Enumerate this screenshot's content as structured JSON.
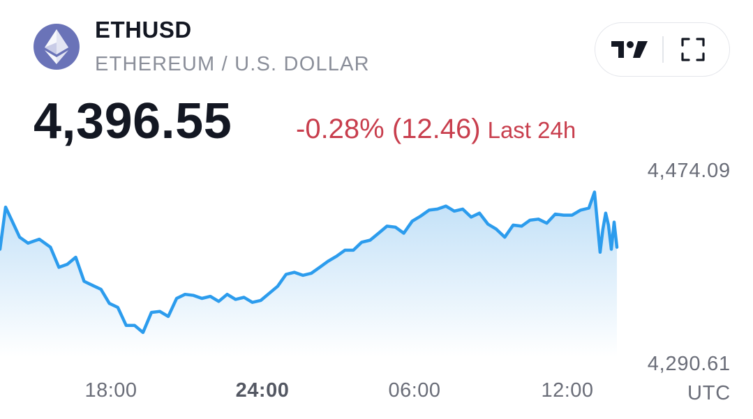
{
  "header": {
    "symbol": "ETHUSD",
    "description": "ETHEREUM / U.S. DOLLAR",
    "logo_icon": "ethereum-icon"
  },
  "toolbar": {
    "tradingview_icon": "tradingview-logo-icon",
    "fullscreen_icon": "fullscreen-icon"
  },
  "quote": {
    "price": "4,396.55",
    "change": "-0.28% (12.46)",
    "period": "Last 24h"
  },
  "colors": {
    "line": "#2c9ced",
    "fill_top": "#bfdff7",
    "fill_bottom": "#ffffff",
    "negative": "#c83e4d",
    "logo_bg": "#6a73b8"
  },
  "chart_data": {
    "type": "area",
    "symbol": "ETHUSD",
    "ylim": [
      4290.61,
      4474.09
    ],
    "y_ticks": [
      "4,474.09",
      "4,290.61"
    ],
    "x_ticks": [
      "18:00",
      "24:00",
      "06:00",
      "12:00"
    ],
    "x_ticks_bold": [
      false,
      true,
      false,
      false
    ],
    "timezone": "UTC",
    "x_unit": "hours (24h window, 12:00 = last tick shown)",
    "x_range": [
      -9.3,
      12.7
    ],
    "series": [
      {
        "x": [
          -9.3,
          -9.1,
          -8.9,
          -8.6,
          -8.3,
          -7.9,
          -7.5,
          -7.2,
          -6.9,
          -6.6,
          -6.3,
          -6.0,
          -5.7,
          -5.4,
          -5.1,
          -4.8,
          -4.5,
          -4.2,
          -3.9,
          -3.6,
          -3.3,
          -3.0,
          -2.7,
          -2.4,
          -2.1,
          -1.8,
          -1.5,
          -1.2,
          -0.9,
          -0.6,
          -0.3,
          0.0,
          0.3,
          0.6,
          0.9,
          1.2,
          1.5,
          1.8,
          2.1,
          2.4,
          2.7,
          3.0,
          3.3,
          3.6,
          3.9,
          4.2,
          4.5,
          4.8,
          5.1,
          5.4,
          5.7,
          6.0,
          6.3,
          6.6,
          6.9,
          7.2,
          7.5,
          7.8,
          8.1,
          8.4,
          8.7,
          9.0,
          9.3,
          9.6,
          9.9,
          10.2,
          10.5,
          10.8,
          11.1,
          11.4,
          11.7,
          11.9,
          12.0,
          12.1,
          12.2,
          12.3,
          12.4,
          12.5,
          12.6,
          12.7
        ],
        "y": [
          4398,
          4440,
          4428,
          4410,
          4404,
          4408,
          4400,
          4380,
          4383,
          4390,
          4366,
          4362,
          4358,
          4344,
          4340,
          4322,
          4322,
          4315,
          4335,
          4336,
          4331,
          4349,
          4353,
          4352,
          4349,
          4351,
          4346,
          4353,
          4348,
          4350,
          4345,
          4347,
          4354,
          4361,
          4373,
          4375,
          4372,
          4374,
          4380,
          4386,
          4391,
          4397,
          4397,
          4405,
          4407,
          4414,
          4421,
          4420,
          4414,
          4426,
          4431,
          4437,
          4438,
          4441,
          4436,
          4438,
          4430,
          4434,
          4423,
          4418,
          4410,
          4422,
          4421,
          4427,
          4428,
          4424,
          4433,
          4432,
          4432,
          4437,
          4439,
          4455,
          4425,
          4395,
          4418,
          4434,
          4422,
          4398,
          4425,
          4400
        ]
      }
    ]
  }
}
